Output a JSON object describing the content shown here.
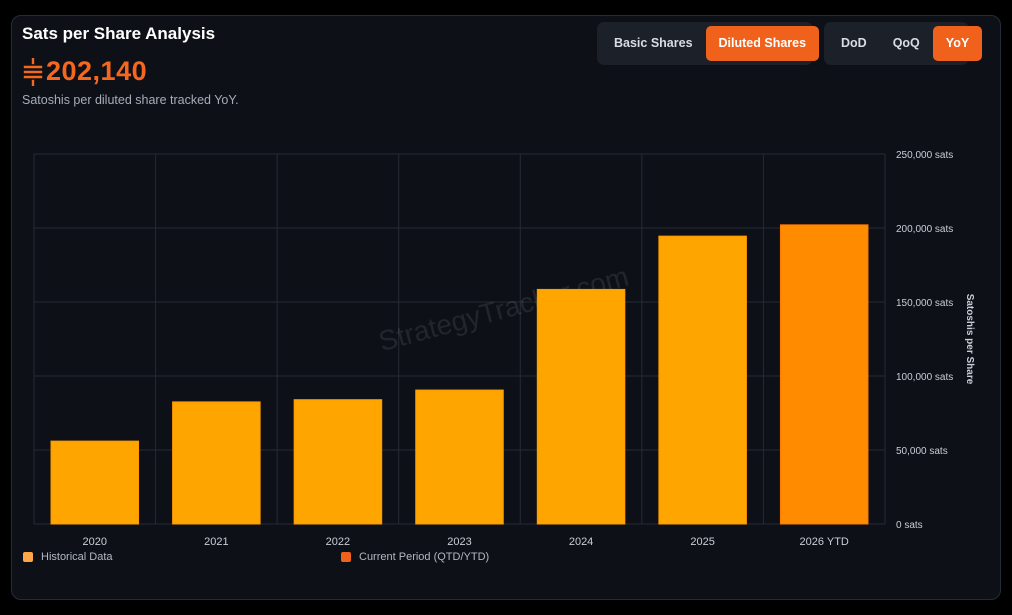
{
  "header": {
    "title": "Sats per Share Analysis",
    "value": "202,140",
    "subtitle": "Satoshis per diluted share tracked YoY."
  },
  "shares_toggle": {
    "options": [
      "Basic Shares",
      "Diluted Shares"
    ],
    "selected": "Diluted Shares"
  },
  "period_toggle": {
    "options": [
      "DoD",
      "QoQ",
      "YoY"
    ],
    "selected": "YoY"
  },
  "watermark": "StrategyTracker.com",
  "legend": {
    "historical": "Historical Data",
    "current": "Current Period (QTD/YTD)"
  },
  "colors": {
    "accent": "#f0621b",
    "historical_bar": "#ffa500",
    "current_bar": "#ff8c00",
    "background": "#0d1017"
  },
  "chart_data": {
    "type": "bar",
    "categories": [
      "2020",
      "2021",
      "2022",
      "2023",
      "2024",
      "2025",
      "2026 YTD"
    ],
    "values": [
      56000,
      82500,
      84000,
      90500,
      158500,
      194500,
      202140
    ],
    "current_period_index": 6,
    "ylabel": "Satoshis per Share",
    "ylim": [
      0,
      250000
    ],
    "yticks": [
      0,
      50000,
      100000,
      150000,
      200000,
      250000
    ],
    "ytick_labels": [
      "0 sats",
      "50,000 sats",
      "100,000 sats",
      "150,000 sats",
      "200,000 sats",
      "250,000 sats"
    ],
    "y_axis_position": "right",
    "grid": true
  }
}
